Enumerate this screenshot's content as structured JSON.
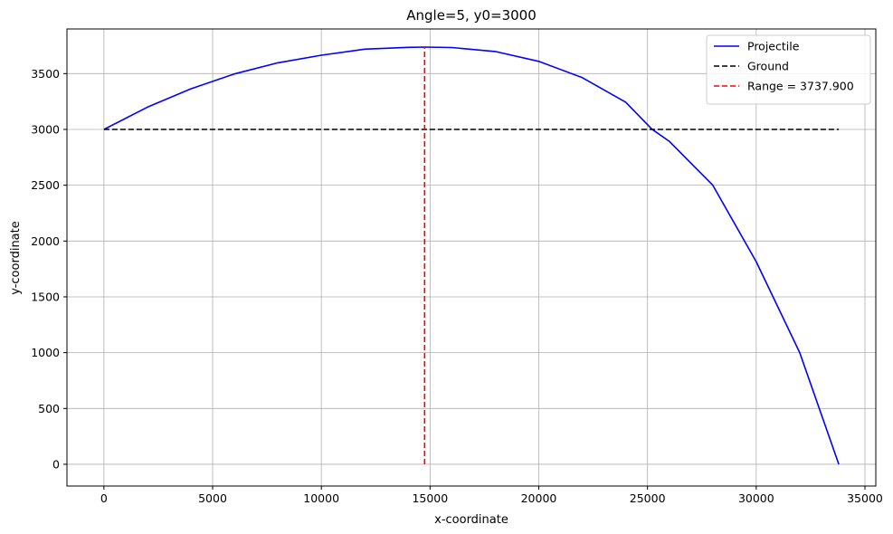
{
  "chart_data": {
    "type": "line",
    "title": "Angle=5, y0=3000",
    "xlabel": "x-coordinate",
    "ylabel": "y-coordinate",
    "xlim": [
      -1700,
      35500
    ],
    "ylim": [
      -195,
      3900
    ],
    "xticks": [
      0,
      5000,
      10000,
      15000,
      20000,
      25000,
      30000,
      35000
    ],
    "xtick_labels": [
      "0",
      "5000",
      "10000",
      "15000",
      "20000",
      "25000",
      "30000",
      "35000"
    ],
    "yticks": [
      0,
      500,
      1000,
      1500,
      2000,
      2500,
      3000,
      3500
    ],
    "ytick_labels": [
      "0",
      "500",
      "1000",
      "1500",
      "2000",
      "2500",
      "3000",
      "3500"
    ],
    "grid": true,
    "legend_position": "top-right",
    "series": [
      {
        "name": "Projectile",
        "color": "#0000ff",
        "style": "solid",
        "x": [
          0,
          2000,
          4000,
          6000,
          8000,
          10000,
          12000,
          14000,
          14750,
          16000,
          18000,
          20000,
          22000,
          24000,
          25200,
          26000,
          28000,
          30000,
          32000,
          33800
        ],
        "y": [
          3000,
          3199,
          3364,
          3497,
          3597,
          3665,
          3719,
          3735,
          3738,
          3734,
          3698,
          3610,
          3464,
          3244,
          3002,
          2894,
          2500,
          1815,
          1000,
          0
        ]
      },
      {
        "name": "Ground",
        "color": "#000000",
        "style": "dashed",
        "x": [
          0,
          33800
        ],
        "y": [
          3000,
          3000
        ]
      },
      {
        "name": "Range = 3737.900",
        "color": "#ff0000",
        "style": "dashed",
        "x": [
          14750,
          14750
        ],
        "y": [
          0,
          3738
        ]
      }
    ]
  }
}
